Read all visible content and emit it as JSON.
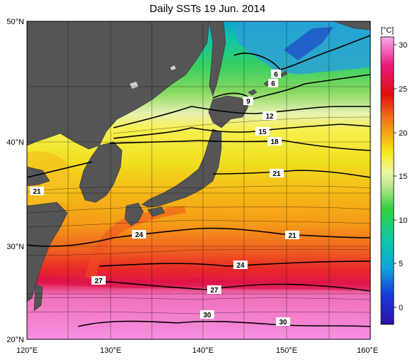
{
  "title": "Daily SSTs 19 Jun. 2014",
  "map": {
    "lon_labels": [
      "120°E",
      "130°E",
      "140°E",
      "150°E",
      "160°E"
    ],
    "lat_labels": [
      "50°N",
      "40°N",
      "30°N",
      "20°N"
    ],
    "contour_labels": [
      "6",
      "6",
      "9",
      "12",
      "15",
      "18",
      "21",
      "21",
      "21",
      "24",
      "24",
      "27",
      "27",
      "30",
      "30"
    ]
  },
  "colorbar": {
    "unit": "[°C]",
    "ticks": [
      "30",
      "25",
      "20",
      "15",
      "10",
      "5",
      "0"
    ]
  }
}
